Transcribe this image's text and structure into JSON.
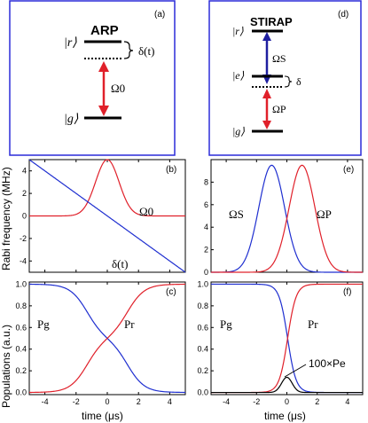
{
  "figure": {
    "shared_ylabel_top": "Rabi frequency (MHz)",
    "shared_ylabel_bottom": "Populations (a.u.)",
    "xlabel": "time (μs)"
  },
  "level_panels": [
    {
      "panel_label": "(a)",
      "title": "ARP",
      "levels": [
        "|r⟩",
        "|g⟩"
      ],
      "detuning_label": "δ(t)",
      "coupling_label": "Ω0",
      "colors": {
        "frame": "#2b2bd9",
        "arrow": "#e0202a"
      }
    },
    {
      "panel_label": "(d)",
      "title": "STIRAP",
      "levels": [
        "|r⟩",
        "|e⟩",
        "|g⟩"
      ],
      "detuning_label": "δ",
      "coupling_labels": [
        "ΩS",
        "ΩP"
      ],
      "colors": {
        "frame": "#2b2bd9",
        "stokes_arrow": "#1f1fa0",
        "pump_arrow": "#e0202a"
      }
    }
  ],
  "chart_data": [
    {
      "panel_label": "(b)",
      "type": "line",
      "x_range": [
        -5,
        5
      ],
      "y_range": [
        -5,
        5
      ],
      "x_ticks": [
        -4,
        -2,
        0,
        2,
        4
      ],
      "y_ticks": [
        -4,
        -2,
        0,
        2,
        4
      ],
      "series": [
        {
          "name": "Ω0",
          "color": "#e0202a",
          "function": "gaussian",
          "amplitude": 5,
          "center": 0,
          "sigma": 0.75,
          "offset_value": 0
        },
        {
          "name": "δ(t)",
          "color": "#1f2fd0",
          "function": "linear",
          "x": [
            -5,
            5
          ],
          "y": [
            5,
            -5
          ]
        }
      ]
    },
    {
      "panel_label": "(e)",
      "type": "line",
      "x_range": [
        -5,
        5
      ],
      "y_range": [
        0,
        10
      ],
      "x_ticks": [
        -4,
        -2,
        0,
        2,
        4
      ],
      "y_ticks": [
        0,
        2,
        4,
        6,
        8
      ],
      "series": [
        {
          "name": "ΩS",
          "color": "#1f2fd0",
          "function": "gaussian",
          "amplitude": 9.5,
          "center": -1,
          "sigma": 0.85
        },
        {
          "name": "ΩP",
          "color": "#e0202a",
          "function": "gaussian",
          "amplitude": 9.5,
          "center": 1,
          "sigma": 0.85
        }
      ]
    },
    {
      "panel_label": "(c)",
      "type": "line",
      "x_range": [
        -5,
        5
      ],
      "y_range": [
        -0.02,
        1.02
      ],
      "x_ticks": [
        -4,
        -2,
        0,
        2,
        4
      ],
      "y_ticks": [
        "0.0",
        "0.2",
        "0.4",
        "0.6",
        "0.8",
        "1.0"
      ],
      "series": [
        {
          "name": "Pg",
          "color": "#1f2fd0",
          "function": "arp_ground"
        },
        {
          "name": "Pr",
          "color": "#e0202a",
          "function": "arp_rydberg"
        }
      ]
    },
    {
      "panel_label": "(f)",
      "type": "line",
      "x_range": [
        -5,
        5
      ],
      "y_range": [
        -0.02,
        1.02
      ],
      "x_ticks": [
        -4,
        -2,
        0,
        2,
        4
      ],
      "y_ticks": [
        "0.0",
        "0.2",
        "0.4",
        "0.6",
        "0.8",
        "1.0"
      ],
      "series": [
        {
          "name": "Pg",
          "color": "#1f2fd0",
          "function": "logistic_down",
          "center": 0.05,
          "width": 0.28
        },
        {
          "name": "Pr",
          "color": "#e0202a",
          "function": "logistic_up",
          "center": 0.05,
          "width": 0.28
        },
        {
          "name": "100×Pe",
          "color": "#000000",
          "function": "gaussian",
          "amplitude": 0.14,
          "center": 0,
          "sigma": 0.35
        }
      ],
      "annotation": "100×Pe"
    }
  ]
}
